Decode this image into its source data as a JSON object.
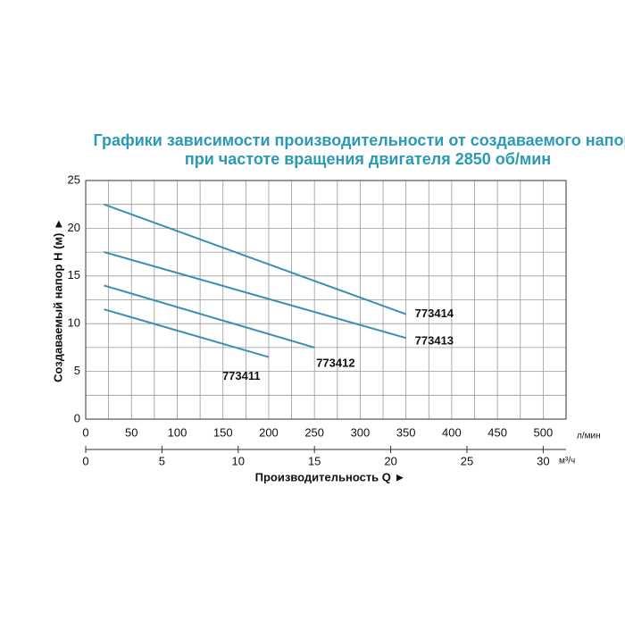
{
  "chart_data": {
    "type": "line",
    "title": [
      "Графики зависимости производительности от создаваемого напора",
      "при частоте вращения двигателя 2850 об/мин"
    ],
    "y_label": "Создаваемый напор H (м) ►",
    "x_label": "Производительность Q ►",
    "x_unit": "л/мин",
    "x2_unit": "м³/ч",
    "xlim": [
      0,
      525
    ],
    "xticks": [
      0,
      50,
      100,
      150,
      200,
      250,
      300,
      350,
      400,
      450,
      500
    ],
    "x2lim": [
      0,
      31.5
    ],
    "x2ticks": [
      0,
      5,
      10,
      15,
      20,
      25,
      30
    ],
    "ylim": [
      0,
      25
    ],
    "yticks": [
      0,
      5,
      10,
      15,
      20,
      25
    ],
    "grid": true,
    "series": [
      {
        "name": "773414",
        "color": "#3a8fb3",
        "x": [
          20,
          350
        ],
        "values": [
          22.5,
          11
        ]
      },
      {
        "name": "773413",
        "color": "#3a8fb3",
        "x": [
          20,
          350
        ],
        "values": [
          17.5,
          8.5
        ]
      },
      {
        "name": "773412",
        "color": "#3a8fb3",
        "x": [
          20,
          250
        ],
        "values": [
          14,
          7.5
        ]
      },
      {
        "name": "773411",
        "color": "#3a8fb3",
        "x": [
          20,
          200
        ],
        "values": [
          11.5,
          6.5
        ]
      }
    ]
  }
}
